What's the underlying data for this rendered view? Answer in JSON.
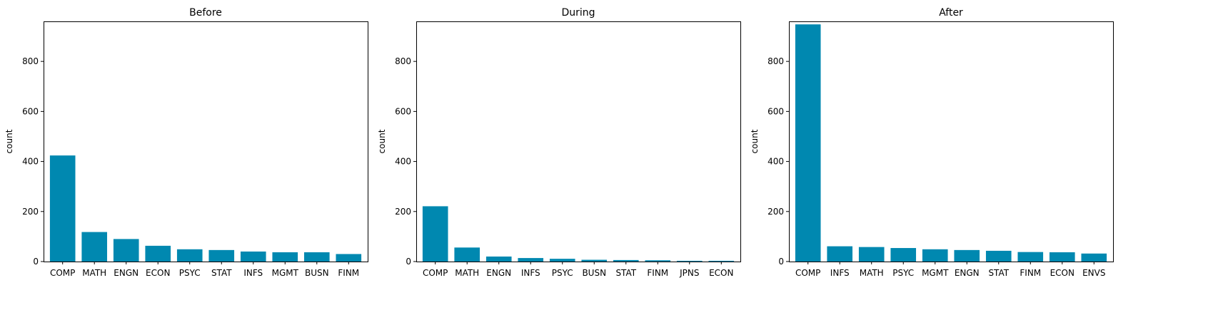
{
  "chart_data": [
    {
      "type": "bar",
      "title": "Before",
      "xlabel": "",
      "ylabel": "count",
      "ylim": [
        0,
        960
      ],
      "yticks": [
        0,
        200,
        400,
        600,
        800
      ],
      "bar_color": "#0088b0",
      "categories": [
        "COMP",
        "MATH",
        "ENGN",
        "ECON",
        "PSYC",
        "STAT",
        "INFS",
        "MGMT",
        "BUSN",
        "FINM"
      ],
      "values": [
        424,
        118,
        90,
        63,
        49,
        46,
        40,
        37,
        37,
        30
      ]
    },
    {
      "type": "bar",
      "title": "During",
      "xlabel": "",
      "ylabel": "count",
      "ylim": [
        0,
        960
      ],
      "yticks": [
        0,
        200,
        400,
        600,
        800
      ],
      "bar_color": "#0088b0",
      "categories": [
        "COMP",
        "MATH",
        "ENGN",
        "INFS",
        "PSYC",
        "BUSN",
        "STAT",
        "FINM",
        "JPNS",
        "ECON"
      ],
      "values": [
        221,
        56,
        20,
        14,
        11,
        7,
        6,
        5,
        3,
        3
      ]
    },
    {
      "type": "bar",
      "title": "After",
      "xlabel": "",
      "ylabel": "count",
      "ylim": [
        0,
        960
      ],
      "yticks": [
        0,
        200,
        400,
        600,
        800
      ],
      "bar_color": "#0088b0",
      "categories": [
        "COMP",
        "INFS",
        "MATH",
        "PSYC",
        "MGMT",
        "ENGN",
        "STAT",
        "FINM",
        "ECON",
        "ENVS"
      ],
      "values": [
        948,
        61,
        58,
        54,
        49,
        46,
        43,
        38,
        37,
        32
      ]
    }
  ]
}
